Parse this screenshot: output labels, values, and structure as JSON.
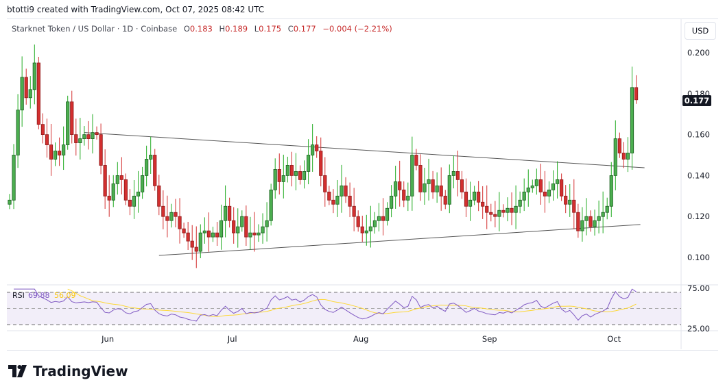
{
  "credit": "btotti9 created with TradingView.com, Oct 07, 2025 08:42 UTC",
  "legend": {
    "symbol": "Starknet Token / US Dollar · 1D · Coinbase",
    "open_label": "O",
    "open": "0.183",
    "high_label": "H",
    "high": "0.189",
    "low_label": "L",
    "low": "0.175",
    "close_label": "C",
    "close": "0.177",
    "change": "−0.004 (−2.21%)"
  },
  "currency_button": "USD",
  "last_price_label": "0.177",
  "colors": {
    "up": "#4caf50",
    "down": "#d32f2f",
    "rsi": "#7e57c2",
    "rsi_ma": "#fdd835",
    "last_price_bg": "#131722"
  },
  "logo_text": "TradingView",
  "chart_data": {
    "type": "candlestick",
    "start_date": "2025-05-09",
    "interval": "1D",
    "closes": [
      0.128,
      0.15,
      0.172,
      0.188,
      0.178,
      0.182,
      0.195,
      0.165,
      0.16,
      0.155,
      0.148,
      0.152,
      0.15,
      0.155,
      0.176,
      0.16,
      0.156,
      0.158,
      0.16,
      0.158,
      0.161,
      0.16,
      0.145,
      0.13,
      0.128,
      0.136,
      0.14,
      0.138,
      0.128,
      0.125,
      0.13,
      0.132,
      0.14,
      0.148,
      0.15,
      0.135,
      0.125,
      0.12,
      0.118,
      0.122,
      0.12,
      0.114,
      0.112,
      0.108,
      0.105,
      0.103,
      0.112,
      0.113,
      0.11,
      0.112,
      0.11,
      0.118,
      0.125,
      0.118,
      0.112,
      0.115,
      0.12,
      0.11,
      0.112,
      0.111,
      0.112,
      0.115,
      0.118,
      0.133,
      0.143,
      0.137,
      0.14,
      0.145,
      0.14,
      0.142,
      0.138,
      0.142,
      0.15,
      0.155,
      0.152,
      0.14,
      0.132,
      0.128,
      0.126,
      0.13,
      0.135,
      0.13,
      0.125,
      0.12,
      0.115,
      0.112,
      0.113,
      0.115,
      0.118,
      0.12,
      0.118,
      0.124,
      0.13,
      0.137,
      0.133,
      0.128,
      0.13,
      0.15,
      0.145,
      0.132,
      0.136,
      0.138,
      0.132,
      0.135,
      0.13,
      0.126,
      0.14,
      0.142,
      0.138,
      0.132,
      0.125,
      0.128,
      0.132,
      0.127,
      0.125,
      0.122,
      0.121,
      0.12,
      0.123,
      0.122,
      0.124,
      0.122,
      0.125,
      0.128,
      0.132,
      0.134,
      0.135,
      0.138,
      0.132,
      0.13,
      0.133,
      0.136,
      0.138,
      0.13,
      0.126,
      0.128,
      0.122,
      0.113,
      0.118,
      0.12,
      0.115,
      0.118,
      0.12,
      0.122,
      0.125,
      0.14,
      0.158,
      0.151,
      0.148,
      0.151,
      0.183,
      0.177
    ],
    "last_candle": {
      "open": 0.183,
      "high": 0.189,
      "low": 0.175,
      "close": 0.177
    },
    "price_ticks": [
      "0.200",
      "0.180",
      "0.160",
      "0.140",
      "0.120",
      "0.100"
    ],
    "price_range": [
      0.0935,
      0.2085
    ],
    "time_labels": [
      {
        "label": "Jun",
        "date": "2025-06-01"
      },
      {
        "label": "Jul",
        "date": "2025-07-01"
      },
      {
        "label": "Aug",
        "date": "2025-08-01"
      },
      {
        "label": "Sep",
        "date": "2025-09-01"
      },
      {
        "label": "Oct",
        "date": "2025-10-01"
      }
    ],
    "trendlines": [
      {
        "from": {
          "date": "2025-05-27",
          "price": 0.161
        },
        "to": {
          "date": "2025-10-09",
          "price": 0.1438
        }
      },
      {
        "from": {
          "date": "2025-06-14",
          "price": 0.101
        },
        "to": {
          "date": "2025-10-08",
          "price": 0.1161
        }
      }
    ],
    "rsi": {
      "label": "RSI",
      "value": "69.88",
      "ma_value": "56.09",
      "period": 14,
      "upper_band": 70,
      "lower_band": 30,
      "middle": 50,
      "axis_ticks": [
        "75.00",
        "25.00"
      ]
    },
    "grid": false
  }
}
